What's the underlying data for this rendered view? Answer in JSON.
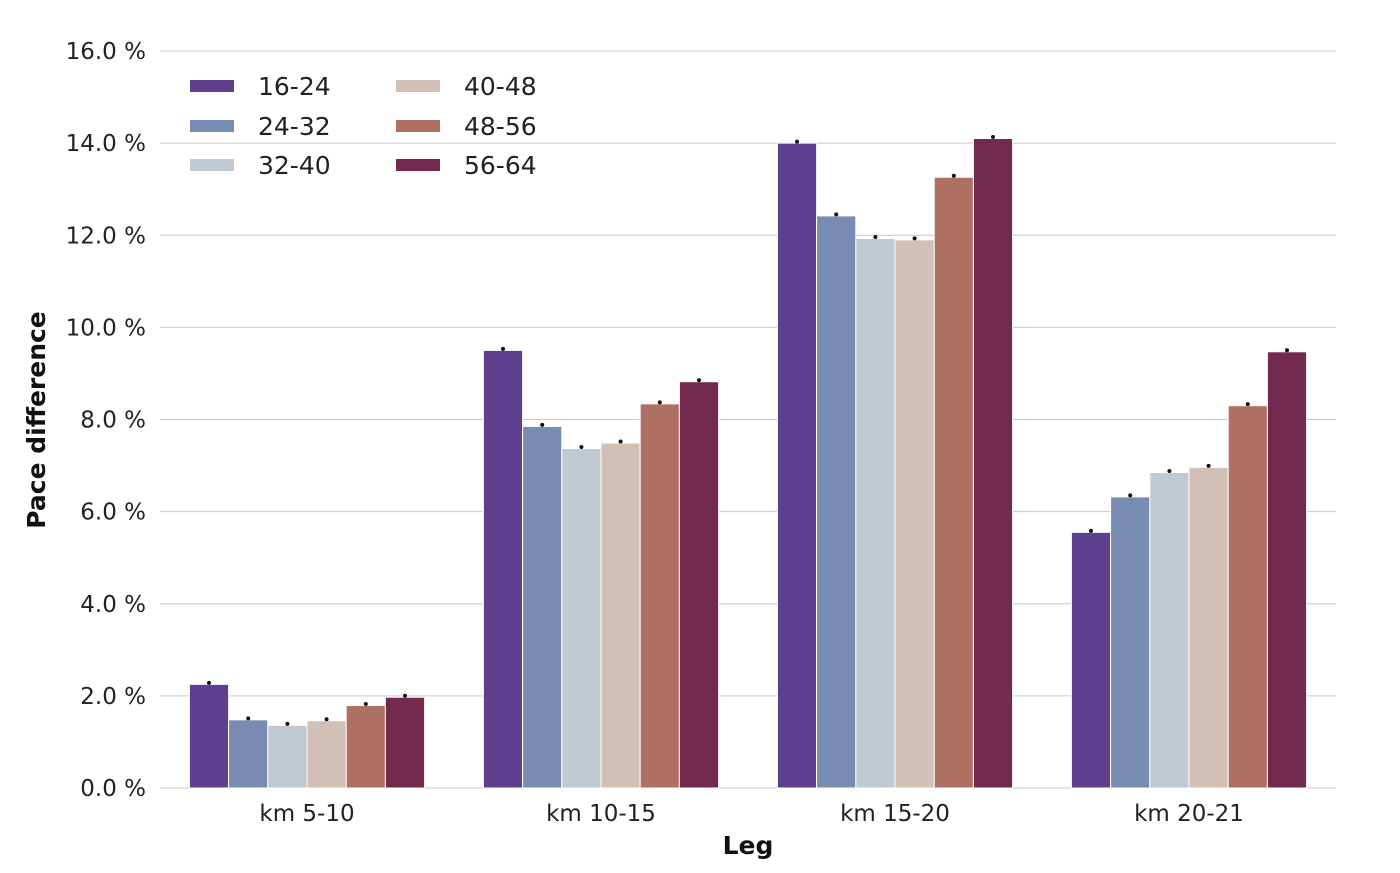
{
  "chart_data": {
    "type": "bar",
    "xlabel": "Leg",
    "ylabel": "Pace difference",
    "ylim": [
      0,
      16
    ],
    "y_ticks": [
      0,
      2,
      4,
      6,
      8,
      10,
      12,
      14,
      16
    ],
    "y_tick_labels": [
      "0.0 %",
      "2.0 %",
      "4.0 %",
      "6.0 %",
      "8.0 %",
      "10.0 %",
      "12.0 %",
      "14.0 %",
      "16.0 %"
    ],
    "grid": "horizontal",
    "legend_position": "top-left",
    "categories": [
      "km 5-10",
      "km 10-15",
      "km 15-20",
      "km 20-21"
    ],
    "series": [
      {
        "name": "16-24",
        "color": "#5d3f8e",
        "values": [
          2.25,
          9.5,
          14.0,
          5.55
        ]
      },
      {
        "name": "24-32",
        "color": "#788bb2",
        "values": [
          1.48,
          7.85,
          12.42,
          6.32
        ]
      },
      {
        "name": "32-40",
        "color": "#c1c9d1",
        "values": [
          1.36,
          7.37,
          11.93,
          6.85
        ]
      },
      {
        "name": "40-48",
        "color": "#d2c0b7",
        "values": [
          1.46,
          7.49,
          11.9,
          6.96
        ]
      },
      {
        "name": "48-56",
        "color": "#ad7062",
        "values": [
          1.79,
          8.34,
          13.26,
          8.3
        ]
      },
      {
        "name": "56-64",
        "color": "#722a4e",
        "values": [
          1.97,
          8.82,
          14.1,
          9.47
        ]
      }
    ]
  }
}
